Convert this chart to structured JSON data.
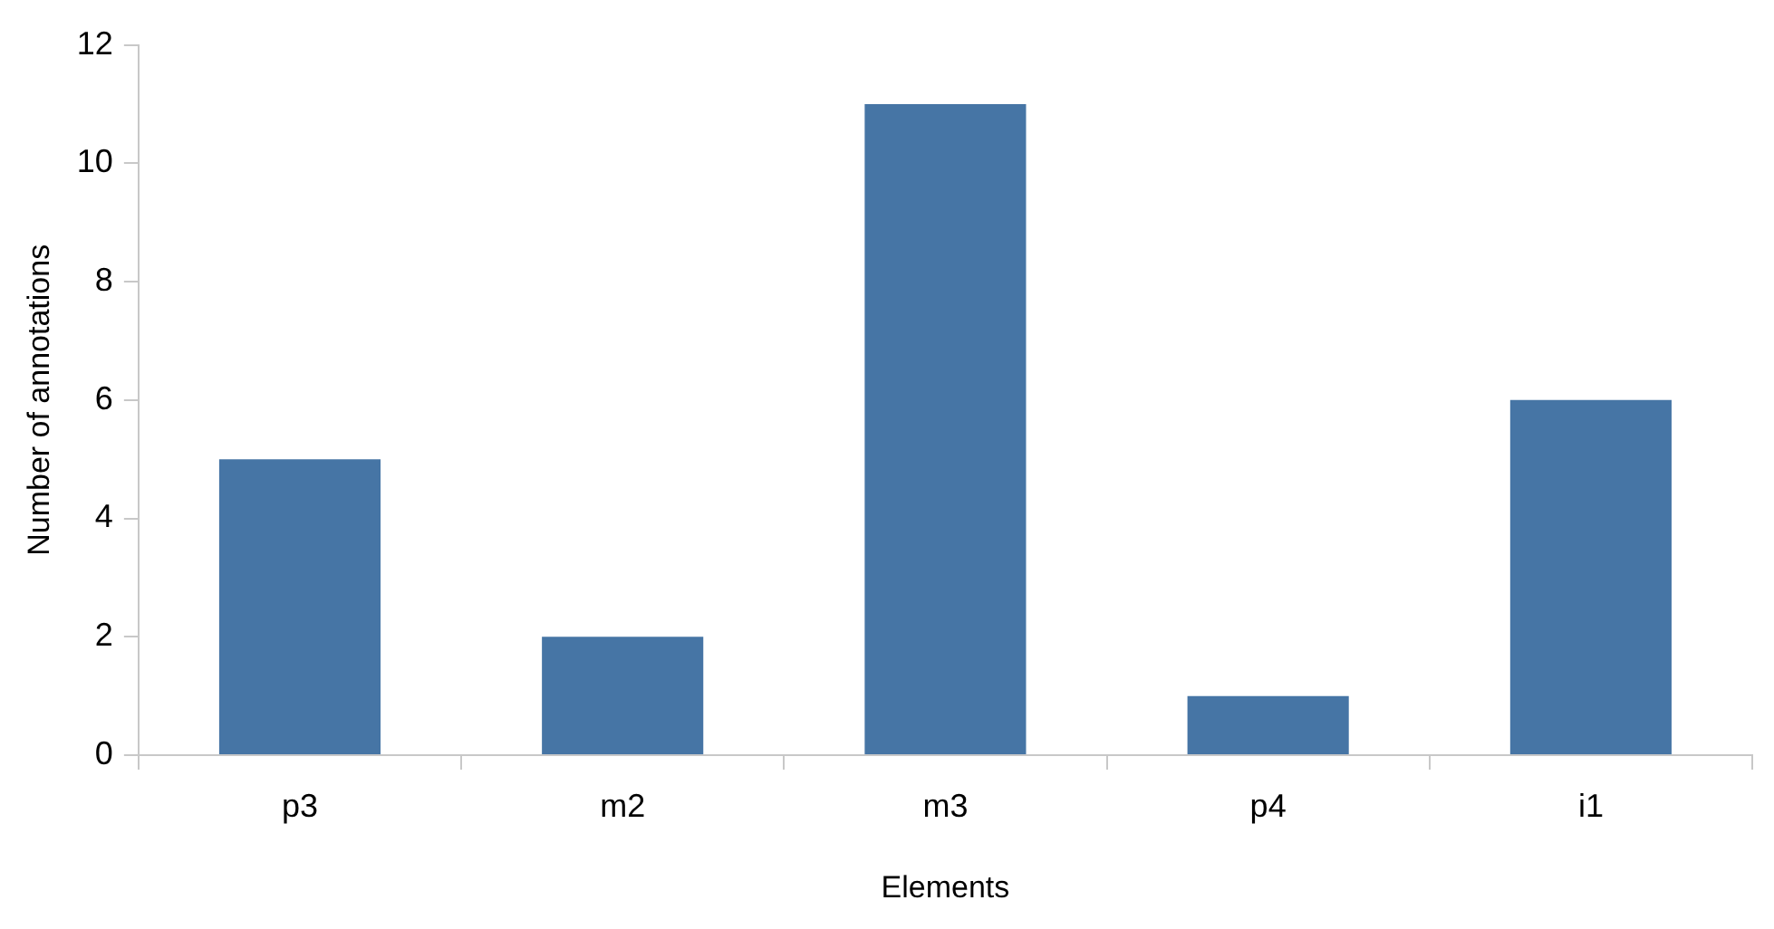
{
  "chart_data": {
    "type": "bar",
    "xlabel": "Elements",
    "ylabel": "Number of annotations",
    "categories": [
      "p3",
      "m2",
      "m3",
      "p4",
      "i1"
    ],
    "values": [
      5,
      2,
      11,
      1,
      6
    ],
    "color": "#4675a5",
    "ylim": [
      0,
      12
    ],
    "yticks": [
      0,
      2,
      4,
      6,
      8,
      10,
      12
    ],
    "grid": false,
    "legend": false
  }
}
